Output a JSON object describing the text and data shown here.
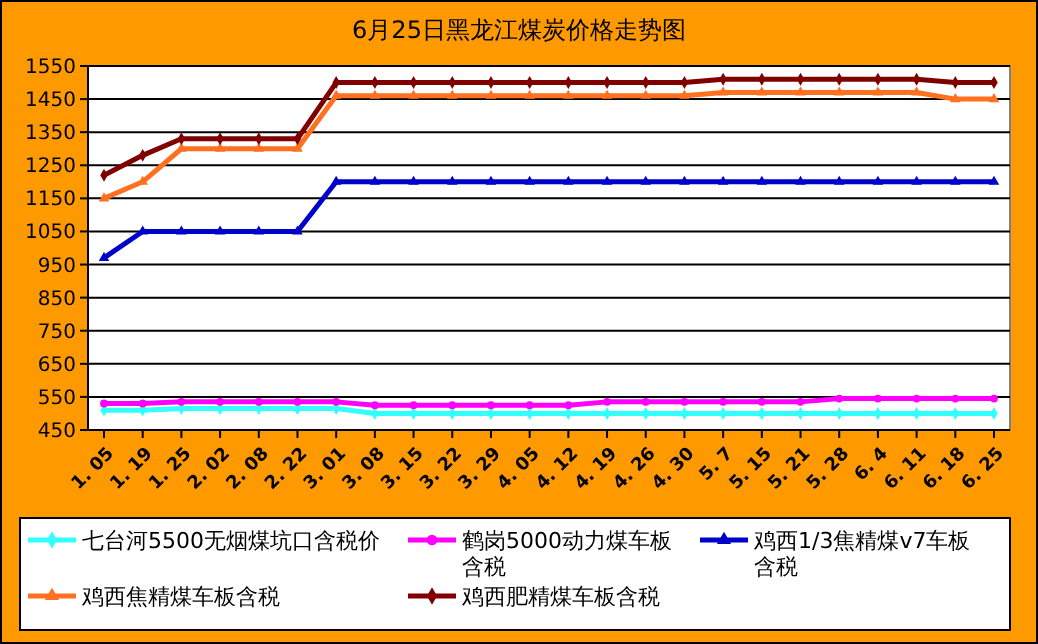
{
  "chart_data": {
    "type": "line",
    "title": "6月25日黑龙江煤炭价格走势图",
    "categories": [
      "1. 05",
      "1. 19",
      "1. 25",
      "2. 02",
      "2. 08",
      "2. 22",
      "3. 01",
      "3. 08",
      "3. 15",
      "3. 22",
      "3. 29",
      "4. 05",
      "4. 12",
      "4. 19",
      "4. 26",
      "4. 30",
      "5. 7",
      "5. 15",
      "5. 21",
      "5. 28",
      "6. 4",
      "6. 11",
      "6. 18",
      "6. 25"
    ],
    "ylim": [
      450,
      1550
    ],
    "yticks": [
      450,
      550,
      650,
      750,
      850,
      950,
      1050,
      1150,
      1250,
      1350,
      1450,
      1550
    ],
    "grid": "y",
    "legend": "bottom",
    "series": [
      {
        "name": "七台河5500无烟煤坑口含税价",
        "color": "#33ffff",
        "marker": "diamond",
        "values": [
          510,
          510,
          515,
          515,
          515,
          515,
          515,
          500,
          500,
          500,
          500,
          500,
          500,
          500,
          500,
          500,
          500,
          500,
          500,
          500,
          500,
          500,
          500,
          500
        ]
      },
      {
        "name": "鹤岗5000动力煤车板含税",
        "color": "#ff00ff",
        "marker": "circle",
        "values": [
          530,
          530,
          535,
          535,
          535,
          535,
          535,
          525,
          525,
          525,
          525,
          525,
          525,
          535,
          535,
          535,
          535,
          535,
          535,
          545,
          545,
          545,
          545,
          545
        ]
      },
      {
        "name": "鸡西1/3焦精煤v7车板含税",
        "color": "#0000cc",
        "marker": "triangle",
        "values": [
          970,
          1050,
          1050,
          1050,
          1050,
          1050,
          1200,
          1200,
          1200,
          1200,
          1200,
          1200,
          1200,
          1200,
          1200,
          1200,
          1200,
          1200,
          1200,
          1200,
          1200,
          1200,
          1200,
          1200
        ]
      },
      {
        "name": "鸡西焦精煤车板含税",
        "color": "#ff7020",
        "marker": "triangle",
        "values": [
          1150,
          1200,
          1300,
          1300,
          1300,
          1300,
          1460,
          1460,
          1460,
          1460,
          1460,
          1460,
          1460,
          1460,
          1460,
          1460,
          1470,
          1470,
          1470,
          1470,
          1470,
          1470,
          1450,
          1450
        ]
      },
      {
        "name": "鸡西肥精煤车板含税",
        "color": "#800000",
        "marker": "diamond",
        "values": [
          1220,
          1280,
          1330,
          1330,
          1330,
          1330,
          1500,
          1500,
          1500,
          1500,
          1500,
          1500,
          1500,
          1500,
          1500,
          1500,
          1510,
          1510,
          1510,
          1510,
          1510,
          1510,
          1500,
          1500
        ]
      }
    ]
  }
}
